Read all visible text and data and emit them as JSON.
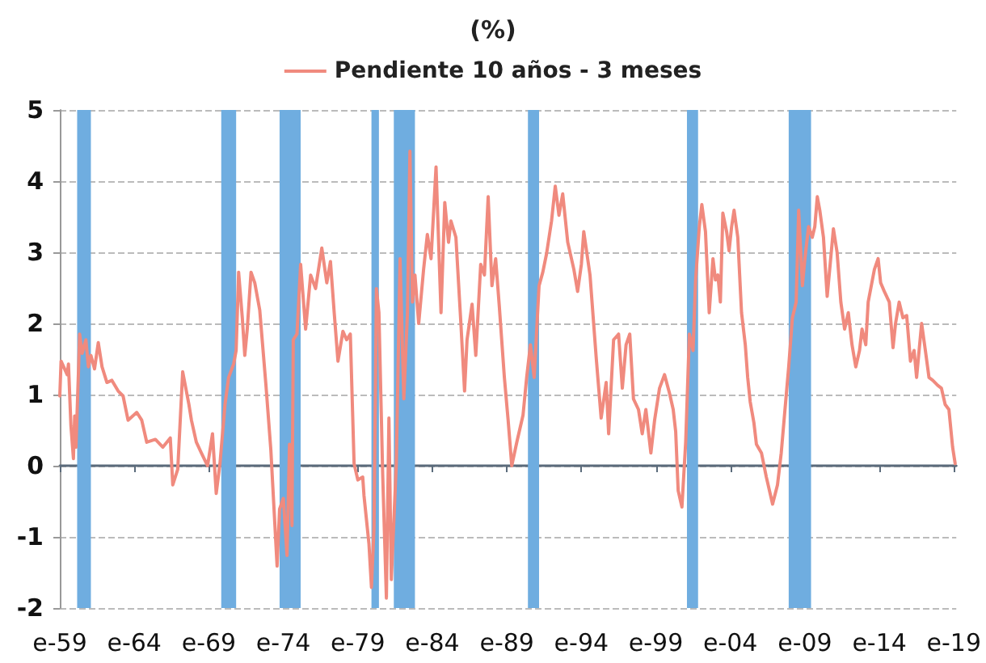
{
  "chart_data": {
    "type": "line",
    "title": "(%)",
    "x": [
      "1959-01",
      "1959-02",
      "1959-07",
      "1959-08",
      "1959-10",
      "1959-12",
      "1960-01",
      "1960-02",
      "1960-04",
      "1960-05",
      "1960-07",
      "1960-10",
      "1960-12",
      "1961-02",
      "1961-05",
      "1961-08",
      "1961-11",
      "1962-03",
      "1962-07",
      "1962-12",
      "1963-04",
      "1963-08",
      "1964-03",
      "1964-07",
      "1964-11",
      "1965-06",
      "1965-12",
      "1966-06",
      "1966-08",
      "1966-12",
      "1967-04",
      "1967-09",
      "1967-11",
      "1968-03",
      "1968-07",
      "1968-12",
      "1969-04",
      "1969-07",
      "1969-10",
      "1970-02",
      "1970-05",
      "1970-09",
      "1970-11",
      "1971-01",
      "1971-04",
      "1971-06",
      "1971-08",
      "1971-11",
      "1972-02",
      "1972-06",
      "1972-11",
      "1973-03",
      "1973-08",
      "1973-10",
      "1974-01",
      "1974-04",
      "1974-06",
      "1974-08",
      "1974-09",
      "1974-12",
      "1975-03",
      "1975-07",
      "1975-11",
      "1976-03",
      "1976-08",
      "1976-12",
      "1977-03",
      "1977-06",
      "1977-09",
      "1978-01",
      "1978-04",
      "1978-07",
      "1978-10",
      "1979-01",
      "1979-05",
      "1979-06",
      "1979-10",
      "1979-12",
      "1980-02",
      "1980-04",
      "1980-06",
      "1980-09",
      "1980-12",
      "1981-02",
      "1981-04",
      "1981-08",
      "1981-11",
      "1982-02",
      "1982-05",
      "1982-07",
      "1982-09",
      "1982-11",
      "1983-02",
      "1983-06",
      "1983-09",
      "1983-12",
      "1984-04",
      "1984-08",
      "1984-11",
      "1985-02",
      "1985-04",
      "1985-08",
      "1985-12",
      "1986-03",
      "1986-05",
      "1986-09",
      "1986-12",
      "1987-04",
      "1987-07",
      "1987-10",
      "1988-01",
      "1988-04",
      "1988-07",
      "1988-11",
      "1989-02",
      "1989-05",
      "1989-09",
      "1990-02",
      "1990-05",
      "1990-08",
      "1990-11",
      "1991-03",
      "1991-06",
      "1991-09",
      "1992-01",
      "1992-04",
      "1992-07",
      "1992-10",
      "1993-02",
      "1993-07",
      "1993-10",
      "1994-01",
      "1994-03",
      "1994-08",
      "1995-01",
      "1995-05",
      "1995-09",
      "1995-11",
      "1996-03",
      "1996-07",
      "1996-10",
      "1997-01",
      "1997-04",
      "1997-07",
      "1997-11",
      "1998-02",
      "1998-05",
      "1998-09",
      "1998-12",
      "1999-04",
      "1999-08",
      "1999-12",
      "2000-03",
      "2000-05",
      "2000-07",
      "2000-10",
      "2001-01",
      "2001-04",
      "2001-07",
      "2001-09",
      "2001-12",
      "2002-02",
      "2002-05",
      "2002-08",
      "2002-11",
      "2003-01",
      "2003-03",
      "2003-05",
      "2003-07",
      "2003-10",
      "2003-12",
      "2004-02",
      "2004-04",
      "2004-07",
      "2004-10",
      "2005-01",
      "2005-03",
      "2005-05",
      "2005-08",
      "2005-10",
      "2006-02",
      "2006-06",
      "2006-11",
      "2007-03",
      "2007-06",
      "2007-09",
      "2007-12",
      "2008-03",
      "2008-06",
      "2008-08",
      "2008-11",
      "2009-01",
      "2009-04",
      "2009-07",
      "2009-09",
      "2009-11",
      "2010-01",
      "2010-04",
      "2010-07",
      "2010-09",
      "2010-12",
      "2011-03",
      "2011-06",
      "2011-09",
      "2011-12",
      "2012-03",
      "2012-06",
      "2012-09",
      "2012-11",
      "2013-02",
      "2013-04",
      "2013-09",
      "2013-12",
      "2014-02",
      "2014-05",
      "2014-09",
      "2014-12",
      "2015-02",
      "2015-05",
      "2015-08",
      "2015-11",
      "2016-02",
      "2016-05",
      "2016-07",
      "2016-11",
      "2017-02",
      "2017-05",
      "2017-08",
      "2017-12",
      "2018-03",
      "2018-06",
      "2018-09",
      "2018-12",
      "2019-02"
    ],
    "series": [
      {
        "name": "Pendiente 10 años - 3 meses",
        "color": "#f08a7e",
        "values": [
          0.98,
          1.47,
          1.28,
          1.43,
          0.56,
          0.1,
          0.7,
          0.26,
          1.3,
          1.85,
          1.58,
          1.77,
          1.39,
          1.55,
          1.36,
          1.73,
          1.39,
          1.17,
          1.2,
          1.05,
          0.98,
          0.64,
          0.75,
          0.64,
          0.33,
          0.37,
          0.26,
          0.39,
          -0.27,
          -0.05,
          1.32,
          0.86,
          0.64,
          0.33,
          0.18,
          0.0,
          0.45,
          -0.39,
          0.03,
          0.86,
          1.24,
          1.43,
          1.62,
          2.72,
          2.08,
          1.55,
          1.92,
          2.72,
          2.57,
          2.19,
          1.13,
          0.22,
          -1.41,
          -0.61,
          -0.46,
          -1.26,
          0.3,
          -0.84,
          1.77,
          1.85,
          2.83,
          1.92,
          2.68,
          2.49,
          3.06,
          2.57,
          2.87,
          2.15,
          1.47,
          1.89,
          1.77,
          1.85,
          0.03,
          -0.2,
          -0.16,
          -0.42,
          -1.1,
          -1.71,
          -0.88,
          2.49,
          2.15,
          -0.12,
          -1.86,
          0.67,
          -1.6,
          0.03,
          2.91,
          0.94,
          2.15,
          4.42,
          2.3,
          2.68,
          2.0,
          2.76,
          3.25,
          2.91,
          4.2,
          2.15,
          3.7,
          3.14,
          3.44,
          3.21,
          2.0,
          1.05,
          1.77,
          2.27,
          1.55,
          2.83,
          2.68,
          3.78,
          2.53,
          2.91,
          2.23,
          1.24,
          0.64,
          0.0,
          0.33,
          0.71,
          1.24,
          1.7,
          1.24,
          2.53,
          2.72,
          2.98,
          3.44,
          3.93,
          3.52,
          3.82,
          3.14,
          2.76,
          2.45,
          2.83,
          3.29,
          2.68,
          1.51,
          0.67,
          1.17,
          0.45,
          1.77,
          1.85,
          1.09,
          1.7,
          1.85,
          0.94,
          0.79,
          0.45,
          0.79,
          0.18,
          0.64,
          1.09,
          1.28,
          1.02,
          0.79,
          0.48,
          -0.35,
          -0.58,
          0.33,
          1.85,
          1.62,
          2.61,
          3.36,
          3.67,
          3.29,
          2.15,
          2.91,
          2.61,
          2.68,
          2.3,
          3.55,
          3.29,
          3.02,
          3.36,
          3.59,
          3.21,
          2.15,
          1.7,
          1.24,
          0.9,
          0.6,
          0.3,
          0.18,
          -0.16,
          -0.54,
          -0.27,
          0.18,
          0.79,
          1.39,
          2.08,
          2.3,
          3.59,
          2.53,
          2.91,
          3.36,
          3.21,
          3.36,
          3.78,
          3.59,
          3.21,
          2.38,
          2.76,
          3.33,
          3.0,
          2.3,
          1.92,
          2.15,
          1.7,
          1.39,
          1.62,
          1.92,
          1.7,
          2.3,
          2.76,
          2.91,
          2.57,
          2.45,
          2.3,
          1.66,
          2.0,
          2.3,
          2.08,
          2.11,
          1.47,
          1.62,
          1.24,
          2.0,
          1.62,
          1.24,
          1.2,
          1.13,
          1.09,
          0.86,
          0.79,
          0.26,
          0.03
        ]
      }
    ],
    "xlim": [
      "1959-01",
      "2019-03"
    ],
    "xticks": [
      {
        "value": "1959-01",
        "label": "e-59"
      },
      {
        "value": "1964-01",
        "label": "e-64"
      },
      {
        "value": "1969-01",
        "label": "e-69"
      },
      {
        "value": "1974-01",
        "label": "e-74"
      },
      {
        "value": "1979-01",
        "label": "e-79"
      },
      {
        "value": "1984-01",
        "label": "e-84"
      },
      {
        "value": "1989-01",
        "label": "e-89"
      },
      {
        "value": "1994-01",
        "label": "e-94"
      },
      {
        "value": "1999-01",
        "label": "e-99"
      },
      {
        "value": "2004-01",
        "label": "e-04"
      },
      {
        "value": "2009-01",
        "label": "e-09"
      },
      {
        "value": "2014-01",
        "label": "e-14"
      },
      {
        "value": "2019-01",
        "label": "e-19"
      }
    ],
    "ylim": [
      -2,
      5
    ],
    "yticks": [
      -2,
      -1,
      0,
      1,
      2,
      3,
      4,
      5
    ],
    "bands": [
      {
        "axis": "x",
        "from": "1960-03",
        "to": "1961-02",
        "color": "#6fade0"
      },
      {
        "axis": "x",
        "from": "1969-11",
        "to": "1970-11",
        "color": "#6fade0"
      },
      {
        "axis": "x",
        "from": "1973-10",
        "to": "1975-03",
        "color": "#6fade0"
      },
      {
        "axis": "x",
        "from": "1979-12",
        "to": "1980-06",
        "color": "#6fade0"
      },
      {
        "axis": "x",
        "from": "1981-06",
        "to": "1982-11",
        "color": "#6fade0"
      },
      {
        "axis": "x",
        "from": "1990-06",
        "to": "1991-03",
        "color": "#6fade0"
      },
      {
        "axis": "x",
        "from": "2001-02",
        "to": "2001-11",
        "color": "#6fade0"
      },
      {
        "axis": "x",
        "from": "2007-12",
        "to": "2009-06",
        "color": "#6fade0"
      }
    ],
    "grid": "y",
    "legend": "top",
    "marker": "none"
  }
}
